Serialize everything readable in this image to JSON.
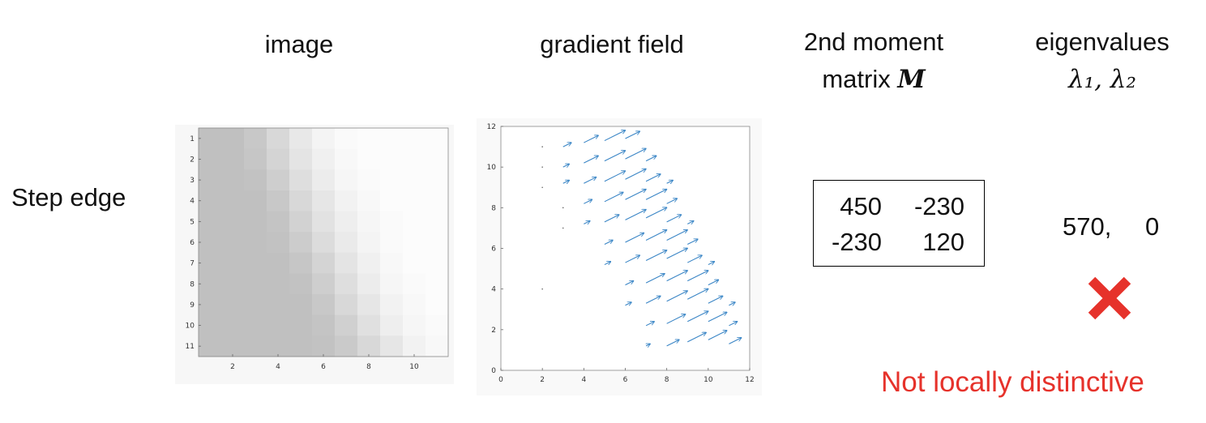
{
  "headers": {
    "image": "image",
    "gradient": "gradient field",
    "moment_line1": "2nd moment",
    "moment_line2": "matrix",
    "moment_symbol": "M",
    "eig_line1": "eigenvalues",
    "eig_symbols": "λ₁, λ₂"
  },
  "row_label": "Step edge",
  "image_plot": {
    "y_ticks": [
      "1",
      "2",
      "3",
      "4",
      "5",
      "6",
      "7",
      "8",
      "9",
      "10",
      "11"
    ],
    "x_ticks": [
      "2",
      "4",
      "6",
      "8",
      "10"
    ],
    "grid": [
      [
        192,
        192,
        200,
        216,
        232,
        244,
        250,
        252,
        252,
        252,
        252
      ],
      [
        192,
        192,
        198,
        212,
        228,
        240,
        248,
        252,
        252,
        252,
        252
      ],
      [
        192,
        192,
        194,
        206,
        222,
        236,
        246,
        250,
        252,
        252,
        252
      ],
      [
        192,
        192,
        192,
        200,
        216,
        230,
        242,
        248,
        252,
        252,
        252
      ],
      [
        192,
        192,
        192,
        196,
        210,
        226,
        238,
        246,
        250,
        252,
        252
      ],
      [
        192,
        192,
        192,
        194,
        204,
        220,
        234,
        244,
        250,
        252,
        252
      ],
      [
        192,
        192,
        192,
        192,
        198,
        212,
        228,
        240,
        248,
        252,
        252
      ],
      [
        192,
        192,
        192,
        192,
        194,
        206,
        222,
        236,
        246,
        250,
        252
      ],
      [
        192,
        192,
        192,
        192,
        192,
        200,
        216,
        230,
        242,
        248,
        252
      ],
      [
        192,
        192,
        192,
        192,
        192,
        196,
        208,
        224,
        238,
        246,
        250
      ],
      [
        192,
        192,
        192,
        192,
        192,
        194,
        202,
        216,
        230,
        242,
        248
      ]
    ]
  },
  "chart_data": {
    "type": "scatter",
    "title": "gradient field",
    "xlim": [
      0,
      12
    ],
    "ylim": [
      0,
      12
    ],
    "x_ticks": [
      "0",
      "2",
      "4",
      "6",
      "8",
      "10",
      "12"
    ],
    "y_ticks": [
      "0",
      "2",
      "4",
      "6",
      "8",
      "10",
      "12"
    ],
    "vectors": [
      {
        "x": 3,
        "y": 11,
        "u": 0.4,
        "v": 0.2
      },
      {
        "x": 4,
        "y": 11.2,
        "u": 0.7,
        "v": 0.35
      },
      {
        "x": 5,
        "y": 11.3,
        "u": 1.0,
        "v": 0.5
      },
      {
        "x": 6,
        "y": 11.4,
        "u": 0.7,
        "v": 0.35
      },
      {
        "x": 3,
        "y": 10,
        "u": 0.3,
        "v": 0.15
      },
      {
        "x": 4,
        "y": 10.2,
        "u": 0.7,
        "v": 0.35
      },
      {
        "x": 5,
        "y": 10.3,
        "u": 1.0,
        "v": 0.5
      },
      {
        "x": 6,
        "y": 10.4,
        "u": 1.0,
        "v": 0.5
      },
      {
        "x": 7,
        "y": 10.3,
        "u": 0.5,
        "v": 0.25
      },
      {
        "x": 3,
        "y": 9.2,
        "u": 0.3,
        "v": 0.15
      },
      {
        "x": 4,
        "y": 9.2,
        "u": 0.6,
        "v": 0.3
      },
      {
        "x": 5,
        "y": 9.3,
        "u": 1.0,
        "v": 0.5
      },
      {
        "x": 6,
        "y": 9.4,
        "u": 1.0,
        "v": 0.5
      },
      {
        "x": 7,
        "y": 9.3,
        "u": 0.7,
        "v": 0.35
      },
      {
        "x": 8,
        "y": 9.2,
        "u": 0.3,
        "v": 0.15
      },
      {
        "x": 4,
        "y": 8.2,
        "u": 0.4,
        "v": 0.2
      },
      {
        "x": 5,
        "y": 8.3,
        "u": 0.9,
        "v": 0.45
      },
      {
        "x": 6,
        "y": 8.4,
        "u": 1.0,
        "v": 0.5
      },
      {
        "x": 7,
        "y": 8.4,
        "u": 1.0,
        "v": 0.5
      },
      {
        "x": 8,
        "y": 8.2,
        "u": 0.5,
        "v": 0.25
      },
      {
        "x": 4,
        "y": 7.2,
        "u": 0.3,
        "v": 0.15
      },
      {
        "x": 5,
        "y": 7.3,
        "u": 0.7,
        "v": 0.35
      },
      {
        "x": 6,
        "y": 7.4,
        "u": 1.0,
        "v": 0.5
      },
      {
        "x": 7,
        "y": 7.5,
        "u": 1.0,
        "v": 0.5
      },
      {
        "x": 8,
        "y": 7.3,
        "u": 0.7,
        "v": 0.35
      },
      {
        "x": 9,
        "y": 7.2,
        "u": 0.3,
        "v": 0.15
      },
      {
        "x": 5,
        "y": 6.2,
        "u": 0.4,
        "v": 0.2
      },
      {
        "x": 6,
        "y": 6.3,
        "u": 0.9,
        "v": 0.45
      },
      {
        "x": 7,
        "y": 6.4,
        "u": 1.0,
        "v": 0.5
      },
      {
        "x": 8,
        "y": 6.4,
        "u": 1.0,
        "v": 0.5
      },
      {
        "x": 9,
        "y": 6.2,
        "u": 0.5,
        "v": 0.25
      },
      {
        "x": 5,
        "y": 5.2,
        "u": 0.3,
        "v": 0.15
      },
      {
        "x": 6,
        "y": 5.3,
        "u": 0.7,
        "v": 0.35
      },
      {
        "x": 7,
        "y": 5.4,
        "u": 1.0,
        "v": 0.5
      },
      {
        "x": 8,
        "y": 5.5,
        "u": 1.0,
        "v": 0.5
      },
      {
        "x": 9,
        "y": 5.3,
        "u": 0.7,
        "v": 0.35
      },
      {
        "x": 10,
        "y": 5.2,
        "u": 0.3,
        "v": 0.15
      },
      {
        "x": 6,
        "y": 4.2,
        "u": 0.4,
        "v": 0.2
      },
      {
        "x": 7,
        "y": 4.3,
        "u": 0.9,
        "v": 0.45
      },
      {
        "x": 8,
        "y": 4.4,
        "u": 1.0,
        "v": 0.5
      },
      {
        "x": 9,
        "y": 4.4,
        "u": 1.0,
        "v": 0.5
      },
      {
        "x": 10,
        "y": 4.2,
        "u": 0.5,
        "v": 0.25
      },
      {
        "x": 6,
        "y": 3.2,
        "u": 0.3,
        "v": 0.15
      },
      {
        "x": 7,
        "y": 3.3,
        "u": 0.7,
        "v": 0.35
      },
      {
        "x": 8,
        "y": 3.4,
        "u": 1.0,
        "v": 0.5
      },
      {
        "x": 9,
        "y": 3.5,
        "u": 1.0,
        "v": 0.5
      },
      {
        "x": 10,
        "y": 3.3,
        "u": 0.7,
        "v": 0.35
      },
      {
        "x": 11,
        "y": 3.2,
        "u": 0.3,
        "v": 0.15
      },
      {
        "x": 7,
        "y": 2.2,
        "u": 0.4,
        "v": 0.2
      },
      {
        "x": 8,
        "y": 2.3,
        "u": 0.9,
        "v": 0.45
      },
      {
        "x": 9,
        "y": 2.4,
        "u": 1.0,
        "v": 0.5
      },
      {
        "x": 10,
        "y": 2.4,
        "u": 0.9,
        "v": 0.45
      },
      {
        "x": 11,
        "y": 2.2,
        "u": 0.4,
        "v": 0.2
      },
      {
        "x": 7,
        "y": 1.2,
        "u": 0.2,
        "v": 0.1
      },
      {
        "x": 8,
        "y": 1.2,
        "u": 0.6,
        "v": 0.3
      },
      {
        "x": 9,
        "y": 1.4,
        "u": 0.9,
        "v": 0.45
      },
      {
        "x": 10,
        "y": 1.5,
        "u": 0.9,
        "v": 0.45
      },
      {
        "x": 11,
        "y": 1.3,
        "u": 0.6,
        "v": 0.3
      }
    ],
    "arrow_color": "#3b86c6"
  },
  "matrix": {
    "r1c1": "450",
    "r1c2": "-230",
    "r2c1": "-230",
    "r2c2": "120"
  },
  "eigenvalues": {
    "l1": "570,",
    "l2": "0"
  },
  "verdict": "Not locally distinctive",
  "colors": {
    "red": "#e6322b",
    "arrow": "#3b86c6"
  }
}
